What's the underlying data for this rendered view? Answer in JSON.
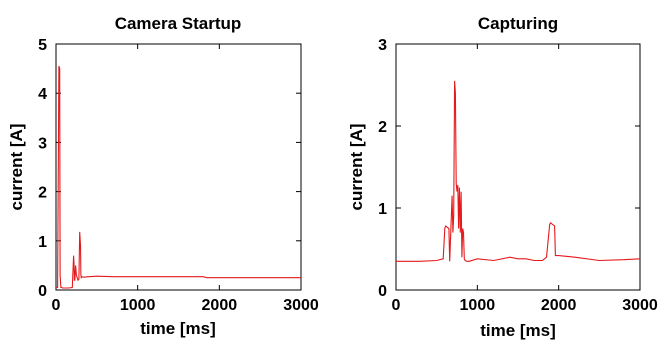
{
  "chart_data": [
    {
      "type": "line",
      "title": "Camera Startup",
      "xlabel": "time [ms]",
      "ylabel": "current [A]",
      "xlim": [
        0,
        3000
      ],
      "ylim": [
        0,
        5
      ],
      "xticks": [
        0,
        1000,
        2000,
        3000
      ],
      "yticks": [
        0,
        1,
        2,
        3,
        4,
        5
      ],
      "grid": false,
      "color": "#e41a1c",
      "series": [
        {
          "x": [
            0,
            20,
            35,
            45,
            50,
            60,
            70,
            80,
            100,
            150,
            200,
            215,
            220,
            225,
            230,
            240,
            250,
            260,
            270,
            280,
            290,
            300,
            305,
            310,
            320,
            340,
            400,
            500,
            700,
            1000,
            1500,
            1800,
            1850,
            2000,
            2500,
            3000
          ],
          "y": [
            0.05,
            0.05,
            4.55,
            4.5,
            0.3,
            0.05,
            0.05,
            0.04,
            0.04,
            0.04,
            0.05,
            0.7,
            0.55,
            0.2,
            0.2,
            0.5,
            0.3,
            0.25,
            0.2,
            0.22,
            1.18,
            0.9,
            0.3,
            0.25,
            0.27,
            0.26,
            0.27,
            0.28,
            0.27,
            0.27,
            0.27,
            0.27,
            0.25,
            0.25,
            0.25,
            0.25
          ]
        }
      ]
    },
    {
      "type": "line",
      "title": "Capturing",
      "xlabel": "time [ms]",
      "ylabel": "current [A]",
      "xlim": [
        0,
        3000
      ],
      "ylim": [
        0,
        3
      ],
      "xticks": [
        0,
        1000,
        2000,
        3000
      ],
      "yticks": [
        0,
        1,
        2,
        3
      ],
      "grid": false,
      "color": "#e41a1c",
      "series": [
        {
          "x": [
            0,
            300,
            500,
            580,
            600,
            610,
            650,
            660,
            690,
            700,
            710,
            720,
            730,
            740,
            750,
            760,
            770,
            780,
            790,
            800,
            810,
            820,
            830,
            840,
            850,
            870,
            900,
            1000,
            1200,
            1400,
            1500,
            1600,
            1700,
            1800,
            1850,
            1880,
            1890,
            1900,
            1950,
            1960,
            2000,
            2200,
            2500,
            2800,
            3000
          ],
          "y": [
            0.35,
            0.35,
            0.36,
            0.38,
            0.75,
            0.78,
            0.75,
            0.35,
            1.15,
            0.7,
            0.9,
            2.55,
            2.4,
            1.3,
            1.2,
            1.28,
            0.75,
            1.25,
            0.7,
            1.2,
            0.4,
            0.75,
            0.7,
            0.38,
            0.36,
            0.35,
            0.35,
            0.38,
            0.36,
            0.4,
            0.38,
            0.38,
            0.36,
            0.36,
            0.4,
            0.7,
            0.8,
            0.82,
            0.78,
            0.42,
            0.42,
            0.4,
            0.36,
            0.37,
            0.38
          ]
        }
      ]
    }
  ]
}
